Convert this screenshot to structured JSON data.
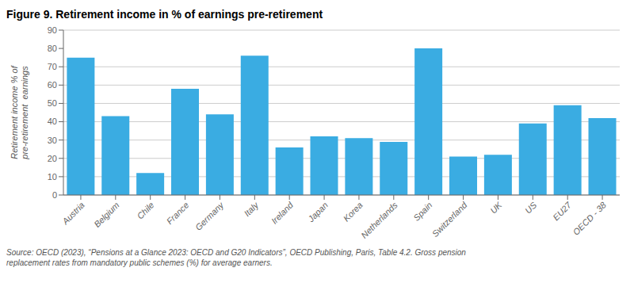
{
  "chart_data": {
    "type": "bar",
    "title": "Figure 9. Retirement income in % of earnings pre-retirement",
    "categories": [
      "Austria",
      "Belgium",
      "Chile",
      "France",
      "Germany",
      "Italy",
      "Ireland",
      "Japan",
      "Korea",
      "Netherlands",
      "Spain",
      "Switzerland",
      "UK",
      "US",
      "EU27",
      "OECD - 38"
    ],
    "values": [
      75,
      43,
      12,
      58,
      44,
      76,
      26,
      32,
      31,
      29,
      80,
      21,
      22,
      39,
      49,
      42
    ],
    "color": "#3aace2",
    "ylabel": "Retirement income % of\npre-retirement  earnings",
    "ylim": [
      0,
      90
    ],
    "yticks": [
      0,
      10,
      20,
      30,
      40,
      50,
      60,
      70,
      80,
      90
    ],
    "grid": true,
    "source": "Source: OECD (2023), “Pensions at a Glance 2023: OECD and G20 Indicators”, OECD Publishing, Paris, Table 4.2. Gross pension\nreplacement rates from mandatory public schemes (%) for average earners."
  }
}
